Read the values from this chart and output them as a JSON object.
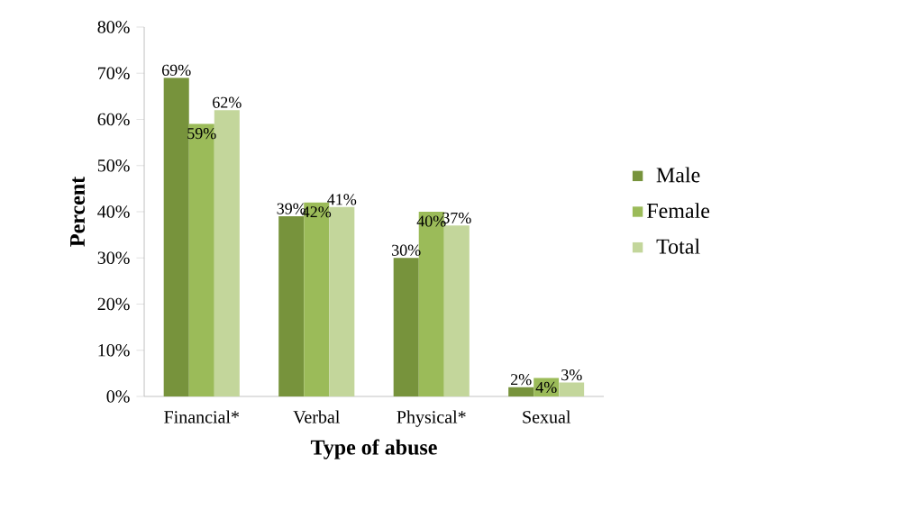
{
  "chart_data": {
    "type": "bar",
    "xlabel": "Type of abuse",
    "ylabel": "Percent",
    "categories": [
      "Financial*",
      "Verbal",
      "Physical*",
      "Sexual"
    ],
    "series": [
      {
        "name": "Male",
        "color": "#77933c",
        "values": [
          69,
          39,
          30,
          2
        ],
        "value_labels": [
          "69%",
          "39%",
          "30%",
          "2%"
        ]
      },
      {
        "name": "Female",
        "color": "#9bbb59",
        "values": [
          59,
          42,
          40,
          4
        ],
        "value_labels": [
          "59%",
          "42%",
          "40%",
          "4%"
        ]
      },
      {
        "name": "Total",
        "color": "#c3d69b",
        "values": [
          62,
          41,
          37,
          3
        ],
        "value_labels": [
          "62%",
          "41%",
          "37%",
          "3%"
        ]
      }
    ],
    "ylim": [
      0,
      80
    ],
    "yticks": [
      {
        "value": 0,
        "label": "0%"
      },
      {
        "value": 10,
        "label": "10%"
      },
      {
        "value": 20,
        "label": "20%"
      },
      {
        "value": 30,
        "label": "30%"
      },
      {
        "value": 40,
        "label": "40%"
      },
      {
        "value": 50,
        "label": "50%"
      },
      {
        "value": 60,
        "label": "60%"
      },
      {
        "value": 70,
        "label": "70%"
      },
      {
        "value": 80,
        "label": "80%"
      }
    ],
    "grid": false,
    "legend": "right"
  }
}
